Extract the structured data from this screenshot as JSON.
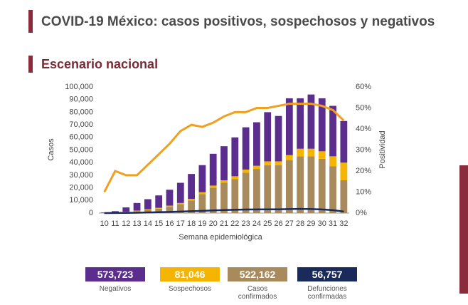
{
  "chart_data": {
    "type": "stacked-bar-line",
    "title": "COVID-19 México: casos positivos, sospechosos y negativos",
    "subtitle": "Escenario nacional",
    "x_label": "Semana epidemiológica",
    "y_label": "Casos",
    "y2_label": "Positividad",
    "categories": [
      "10",
      "11",
      "12",
      "13",
      "14",
      "15",
      "16",
      "17",
      "18",
      "19",
      "20",
      "21",
      "22",
      "23",
      "24",
      "25",
      "26",
      "27",
      "28",
      "29",
      "30",
      "31",
      "32"
    ],
    "series": [
      {
        "color": "#a88a5c",
        "kind": "bar",
        "values": [
          100,
          300,
          800,
          1500,
          2500,
          3500,
          5000,
          7000,
          10000,
          15000,
          20000,
          24000,
          27000,
          32000,
          35000,
          38000,
          38000,
          42000,
          45000,
          45000,
          43000,
          37000,
          26000
        ]
      },
      {
        "color": "#f5b400",
        "kind": "bar",
        "values": [
          100,
          200,
          300,
          500,
          600,
          700,
          900,
          1000,
          1200,
          1500,
          1800,
          2000,
          2200,
          2500,
          2500,
          3000,
          3000,
          4000,
          6000,
          6000,
          6000,
          8000,
          14000
        ]
      },
      {
        "color": "#5b2d8e",
        "kind": "bar",
        "values": [
          300,
          1000,
          3400,
          6000,
          7900,
          9800,
          12600,
          16000,
          19800,
          21500,
          25200,
          27000,
          30800,
          33500,
          34500,
          39000,
          36000,
          45000,
          40000,
          43000,
          42000,
          40000,
          33000
        ]
      },
      {
        "color": "#1a2a5a",
        "kind": "line",
        "values": [
          0,
          50,
          150,
          300,
          500,
          700,
          900,
          1200,
          1500,
          1800,
          2100,
          2400,
          2600,
          2800,
          2900,
          3000,
          3000,
          3200,
          3300,
          3200,
          2900,
          2300,
          1200
        ]
      },
      {
        "color": "#f0a020",
        "kind": "line",
        "axis": "y2",
        "values": [
          10,
          20,
          18,
          18,
          23,
          28,
          33,
          39,
          42,
          41,
          43,
          46,
          48,
          48,
          50,
          50,
          51,
          52,
          52,
          52,
          51,
          49,
          44
        ]
      }
    ],
    "ylim": [
      0,
      100000
    ],
    "yticks": [
      0,
      {
        "value": 10000,
        "label": "10,000"
      },
      {
        "value": 20000,
        "label": "20,000"
      },
      {
        "value": 30000,
        "label": "30,000"
      },
      {
        "value": 40000,
        "label": "40,000"
      },
      {
        "value": 50000,
        "label": "50,000"
      },
      {
        "value": 60000,
        "label": "60,000"
      },
      {
        "value": 70000,
        "label": "70,000"
      },
      {
        "value": 80000,
        "label": "80,000"
      },
      {
        "value": 90000,
        "label": "90,000"
      },
      {
        "value": 100000,
        "label": "100,000"
      }
    ],
    "y2lim": [
      0,
      60
    ],
    "y2ticks": [
      {
        "value": 0,
        "label": "0%"
      },
      {
        "value": 10,
        "label": "10%"
      },
      {
        "value": 20,
        "label": "20%"
      },
      {
        "value": 30,
        "label": "30%"
      },
      {
        "value": 40,
        "label": "40%"
      },
      {
        "value": 50,
        "label": "50%"
      },
      {
        "value": 60,
        "label": "60%"
      }
    ]
  },
  "summary": [
    {
      "value": "573,723",
      "label": "Negativos",
      "color": "#5b2d8e"
    },
    {
      "value": "81,046",
      "label": "Sospechosos",
      "color": "#f5b400"
    },
    {
      "value": "522,162",
      "label": "Casos confirmados",
      "color": "#a88a5c"
    },
    {
      "value": "56,757",
      "label": "Defunciones confirmadas",
      "color": "#1a2a5a"
    }
  ]
}
